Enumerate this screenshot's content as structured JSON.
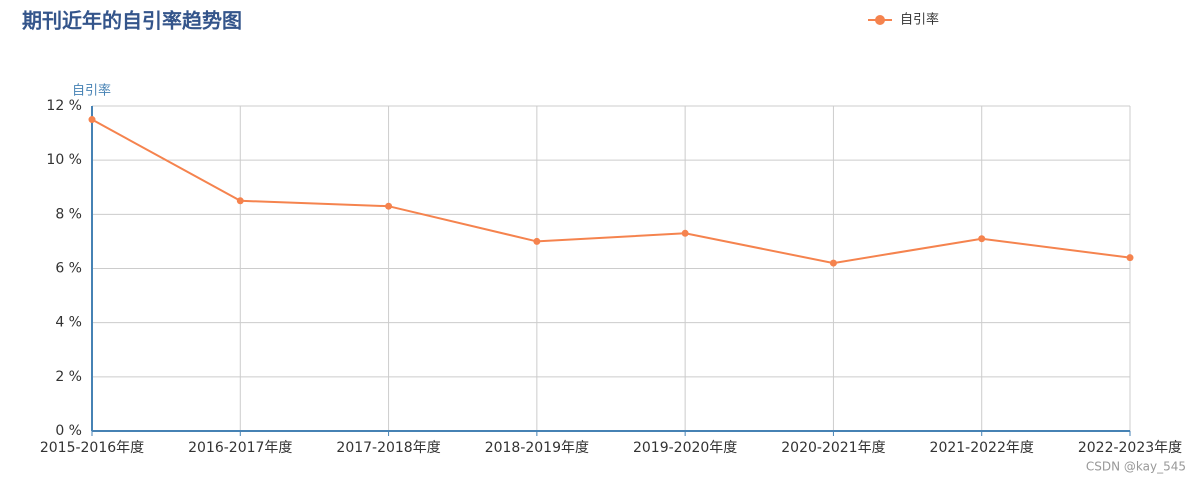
{
  "chart_data": {
    "type": "line",
    "title": "期刊近年的自引率趋势图",
    "y_label": "自引率",
    "categories": [
      "2015-2016年度",
      "2016-2017年度",
      "2017-2018年度",
      "2018-2019年度",
      "2019-2020年度",
      "2020-2021年度",
      "2021-2022年度",
      "2022-2023年度"
    ],
    "series": [
      {
        "name": "自引率",
        "color": "#f5834e",
        "values": [
          11.5,
          8.5,
          8.3,
          7.0,
          7.3,
          6.2,
          7.1,
          6.4
        ]
      }
    ],
    "ylim": [
      0,
      12
    ],
    "yticks": [
      {
        "value": 0,
        "label": "0 %"
      },
      {
        "value": 2,
        "label": "2 %"
      },
      {
        "value": 4,
        "label": "4 %"
      },
      {
        "value": 6,
        "label": "6 %"
      },
      {
        "value": 8,
        "label": "8 %"
      },
      {
        "value": 10,
        "label": "10 %"
      },
      {
        "value": 12,
        "label": "12 %"
      }
    ],
    "grid": true,
    "legend": "top-right",
    "watermark": "CSDN @kay_545"
  }
}
